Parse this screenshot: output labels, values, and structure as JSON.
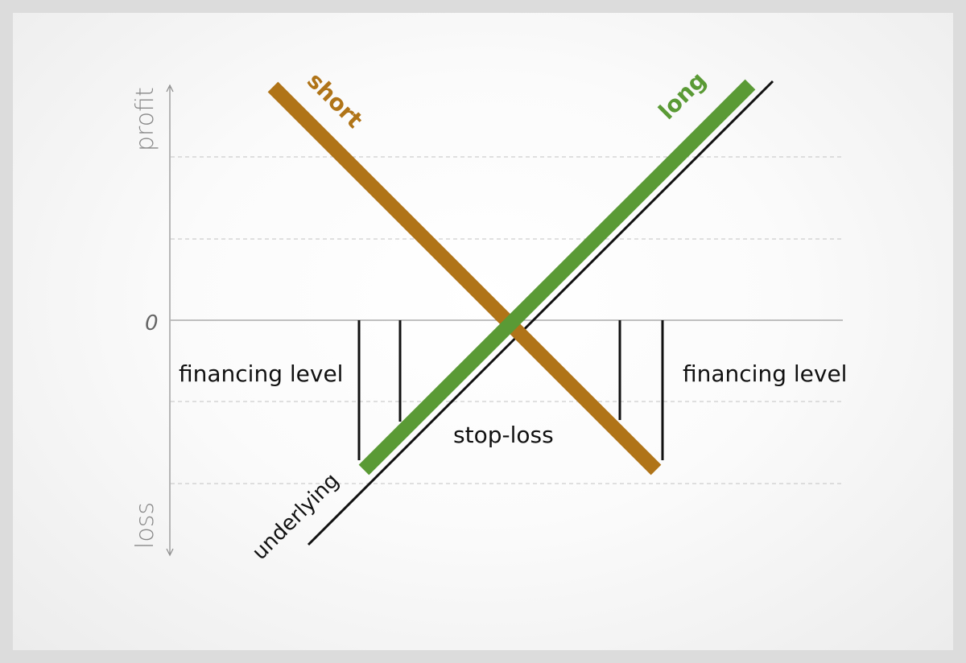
{
  "axis": {
    "profit_label": "profit",
    "loss_label": "loss",
    "zero_label": "0"
  },
  "lines": {
    "short_label": "short",
    "long_label": "long",
    "underlying_label": "underlying"
  },
  "annotations": {
    "financing_left": "financing level",
    "financing_right": "financing level",
    "stop_loss": "stop-loss"
  },
  "colors": {
    "short": "#b07418",
    "long": "#5a9a35",
    "underlying": "#111111",
    "grid": "#bdbdbd",
    "axis": "#888888",
    "text": "#222222"
  }
}
